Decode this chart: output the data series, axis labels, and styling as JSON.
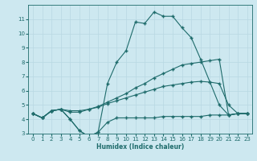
{
  "xlabel": "Humidex (Indice chaleur)",
  "bg_color": "#cde8f0",
  "grid_color": "#b8d8e2",
  "line_color": "#1e6b6b",
  "xlim": [
    -0.5,
    23.5
  ],
  "ylim": [
    3,
    12
  ],
  "yticks": [
    3,
    4,
    5,
    6,
    7,
    8,
    9,
    10,
    11
  ],
  "xticks": [
    0,
    1,
    2,
    3,
    4,
    5,
    6,
    7,
    8,
    9,
    10,
    11,
    12,
    13,
    14,
    15,
    16,
    17,
    18,
    19,
    20,
    21,
    22,
    23
  ],
  "line1_x": [
    0,
    1,
    2,
    3,
    4,
    5,
    6,
    7,
    8,
    9,
    10,
    11,
    12,
    13,
    14,
    15,
    16,
    17,
    18,
    19,
    20,
    21,
    22,
    23
  ],
  "line1_y": [
    4.4,
    4.1,
    4.6,
    4.7,
    4.0,
    3.2,
    2.8,
    3.1,
    3.8,
    4.1,
    4.1,
    4.1,
    4.1,
    4.1,
    4.2,
    4.2,
    4.2,
    4.2,
    4.2,
    4.3,
    4.3,
    4.3,
    4.4,
    4.4
  ],
  "line2_x": [
    0,
    1,
    2,
    3,
    4,
    5,
    6,
    7,
    8,
    9,
    10,
    11,
    12,
    13,
    14,
    15,
    16,
    17,
    18,
    19,
    20,
    21,
    22,
    23
  ],
  "line2_y": [
    4.4,
    4.1,
    4.6,
    4.7,
    4.6,
    4.6,
    4.7,
    4.85,
    5.1,
    5.3,
    5.5,
    5.7,
    5.9,
    6.1,
    6.3,
    6.4,
    6.5,
    6.6,
    6.65,
    6.6,
    6.5,
    5.0,
    4.4,
    4.4
  ],
  "line3_x": [
    0,
    1,
    2,
    3,
    4,
    5,
    6,
    7,
    8,
    9,
    10,
    11,
    12,
    13,
    14,
    15,
    16,
    17,
    18,
    19,
    20,
    21,
    22,
    23
  ],
  "line3_y": [
    4.4,
    4.1,
    4.6,
    4.7,
    4.5,
    4.5,
    4.7,
    4.9,
    5.2,
    5.5,
    5.8,
    6.2,
    6.5,
    6.9,
    7.2,
    7.5,
    7.8,
    7.9,
    8.0,
    8.1,
    8.2,
    4.3,
    4.4,
    4.4
  ],
  "line4_x": [
    0,
    1,
    2,
    3,
    4,
    5,
    6,
    7,
    8,
    9,
    10,
    11,
    12,
    13,
    14,
    15,
    16,
    17,
    18,
    19,
    20,
    21,
    22,
    23
  ],
  "line4_y": [
    4.4,
    4.1,
    4.6,
    4.7,
    4.0,
    3.2,
    2.8,
    3.1,
    6.5,
    8.0,
    8.8,
    10.8,
    10.7,
    11.5,
    11.2,
    11.2,
    10.4,
    9.7,
    8.2,
    6.6,
    5.0,
    4.3,
    4.4,
    4.4
  ]
}
